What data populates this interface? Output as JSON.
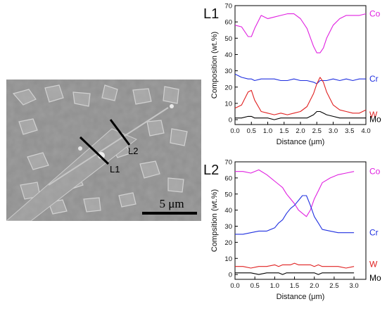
{
  "micrograph": {
    "line_labels": [
      "L1",
      "L2"
    ],
    "scale_bar_label": "5 μm"
  },
  "chart_data": [
    {
      "type": "line",
      "panel_label": "L1",
      "xlabel": "Distance (μm)",
      "ylabel": "Composition (wt.%)",
      "xlim": [
        0,
        4.0
      ],
      "ylim": [
        -3,
        70
      ],
      "xticks": [
        "0.0",
        "0.5",
        "1.0",
        "1.5",
        "2.0",
        "2.5",
        "3.0",
        "3.5",
        "4.0"
      ],
      "yticks": [
        "0",
        "10",
        "20",
        "30",
        "40",
        "50",
        "60",
        "70"
      ],
      "x": [
        0.0,
        0.2,
        0.4,
        0.5,
        0.6,
        0.8,
        1.0,
        1.2,
        1.4,
        1.6,
        1.8,
        2.0,
        2.2,
        2.4,
        2.5,
        2.6,
        2.7,
        2.8,
        3.0,
        3.2,
        3.4,
        3.6,
        3.8,
        4.0
      ],
      "series": [
        {
          "name": "Co",
          "color": "#e020e0",
          "values": [
            58,
            57,
            51,
            51,
            56,
            64,
            62,
            63,
            64,
            65,
            65,
            62,
            56,
            45,
            41,
            41,
            44,
            50,
            58,
            62,
            64,
            64,
            64,
            65
          ]
        },
        {
          "name": "Cr",
          "color": "#2030e0",
          "values": [
            28,
            26,
            25,
            25,
            24,
            25,
            25,
            25,
            24,
            24,
            25,
            24,
            24,
            23,
            22,
            24,
            24,
            24,
            25,
            24,
            25,
            24,
            25,
            25
          ]
        },
        {
          "name": "W",
          "color": "#e02020",
          "values": [
            7,
            9,
            17,
            18,
            12,
            5,
            4,
            3,
            4,
            3,
            4,
            5,
            8,
            16,
            22,
            26,
            23,
            17,
            9,
            6,
            5,
            4,
            4,
            6
          ]
        },
        {
          "name": "Mo",
          "color": "#000000",
          "values": [
            1,
            1,
            2,
            2,
            1,
            1,
            1,
            0,
            1,
            1,
            1,
            1,
            1,
            3,
            5,
            5,
            4,
            3,
            2,
            1,
            1,
            1,
            1,
            1
          ]
        }
      ]
    },
    {
      "type": "line",
      "panel_label": "L2",
      "xlabel": "Distance (μm)",
      "ylabel": "Compsition (wt.%)",
      "xlim": [
        0,
        3.3
      ],
      "ylim": [
        -3,
        70
      ],
      "xticks": [
        "0.0",
        "0.5",
        "1.0",
        "1.5",
        "2.0",
        "2.5",
        "3.0"
      ],
      "yticks": [
        "0",
        "10",
        "20",
        "30",
        "40",
        "50",
        "60",
        "70"
      ],
      "x": [
        0.0,
        0.2,
        0.4,
        0.6,
        0.8,
        1.0,
        1.1,
        1.2,
        1.3,
        1.4,
        1.5,
        1.6,
        1.7,
        1.8,
        1.9,
        2.0,
        2.1,
        2.2,
        2.4,
        2.6,
        2.8,
        3.0
      ],
      "series": [
        {
          "name": "Co",
          "color": "#e020e0",
          "values": [
            64,
            64,
            63,
            65,
            62,
            58,
            56,
            54,
            50,
            47,
            44,
            40,
            38,
            36,
            40,
            47,
            52,
            57,
            60,
            62,
            63,
            64
          ]
        },
        {
          "name": "Cr",
          "color": "#2030e0",
          "values": [
            25,
            25,
            26,
            27,
            27,
            29,
            32,
            34,
            38,
            41,
            43,
            46,
            49,
            49,
            43,
            36,
            32,
            28,
            27,
            26,
            26,
            26
          ]
        },
        {
          "name": "W",
          "color": "#e02020",
          "values": [
            5,
            5,
            4,
            5,
            5,
            6,
            5,
            6,
            6,
            6,
            7,
            6,
            6,
            6,
            6,
            5,
            6,
            5,
            5,
            5,
            4,
            5
          ]
        },
        {
          "name": "Mo",
          "color": "#000000",
          "values": [
            1,
            1,
            1,
            0,
            1,
            1,
            1,
            0,
            1,
            1,
            1,
            1,
            1,
            1,
            1,
            1,
            0,
            1,
            1,
            1,
            1,
            1
          ]
        }
      ]
    }
  ]
}
